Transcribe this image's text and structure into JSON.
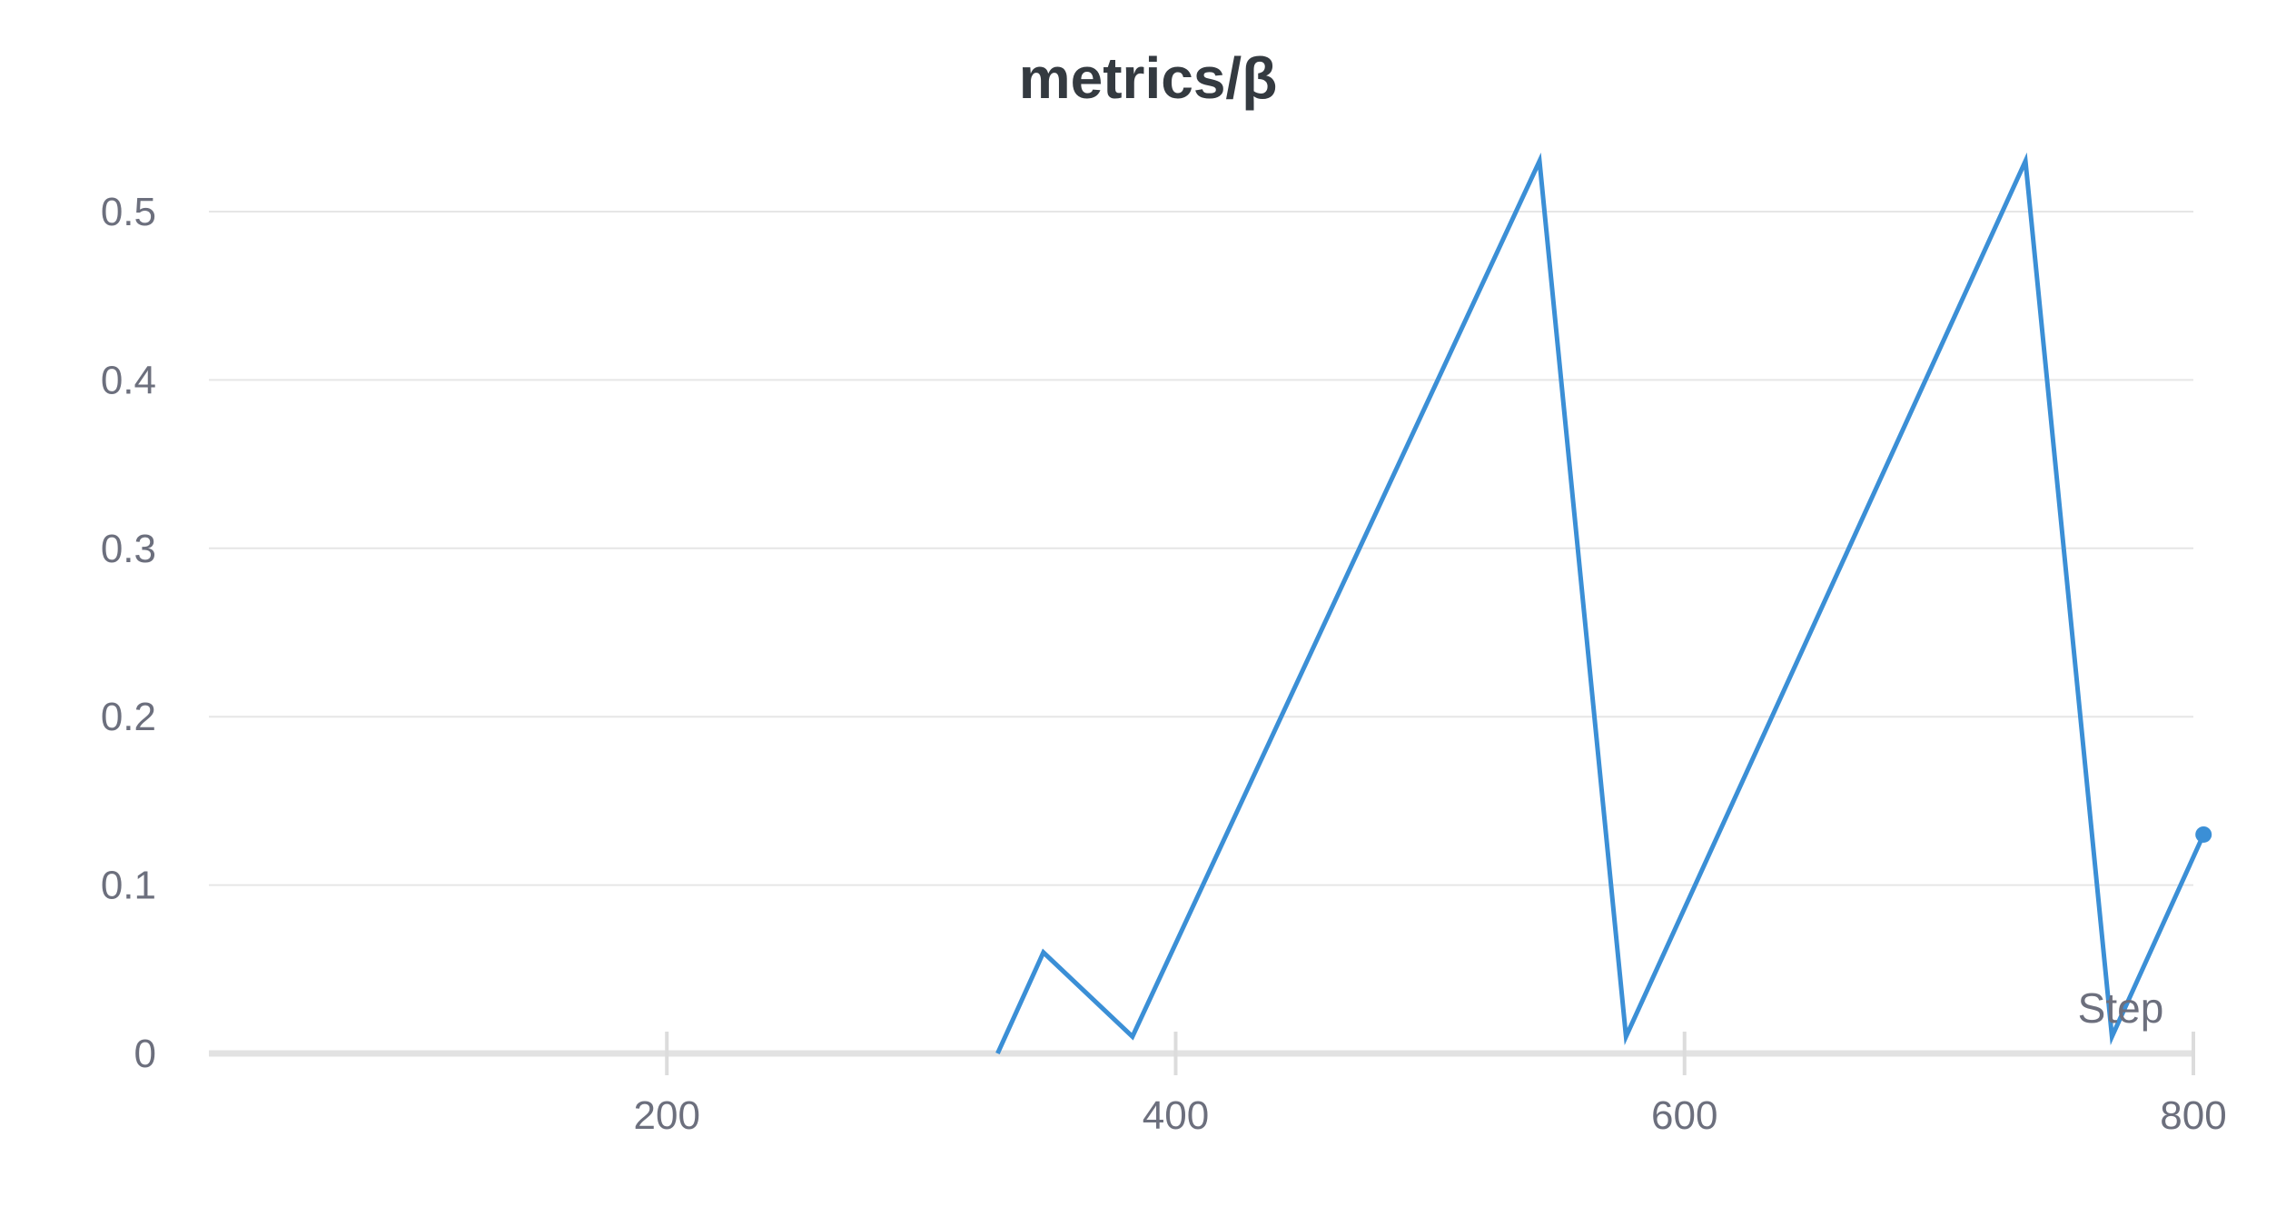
{
  "chart_data": {
    "type": "line",
    "title": "metrics/β",
    "xlabel": "Step",
    "ylabel": "",
    "xlim": [
      20,
      800
    ],
    "ylim": [
      0,
      0.55
    ],
    "x_ticks": [
      200,
      400,
      600,
      800
    ],
    "y_ticks": [
      0,
      0.1,
      0.2,
      0.3,
      0.4,
      0.5
    ],
    "x_tick_labels": [
      "200",
      "400",
      "600",
      "800"
    ],
    "y_tick_labels": [
      "0",
      "0.1",
      "0.2",
      "0.3",
      "0.4",
      "0.5"
    ],
    "grid": true,
    "legend": "none",
    "series": [
      {
        "color": "#3b8fd6",
        "x": [
          20,
          330,
          348,
          383,
          543,
          577,
          734,
          768,
          804
        ],
        "y": [
          0,
          0,
          0.06,
          0.01,
          0.53,
          0.01,
          0.53,
          0.01,
          0.13
        ]
      }
    ]
  }
}
